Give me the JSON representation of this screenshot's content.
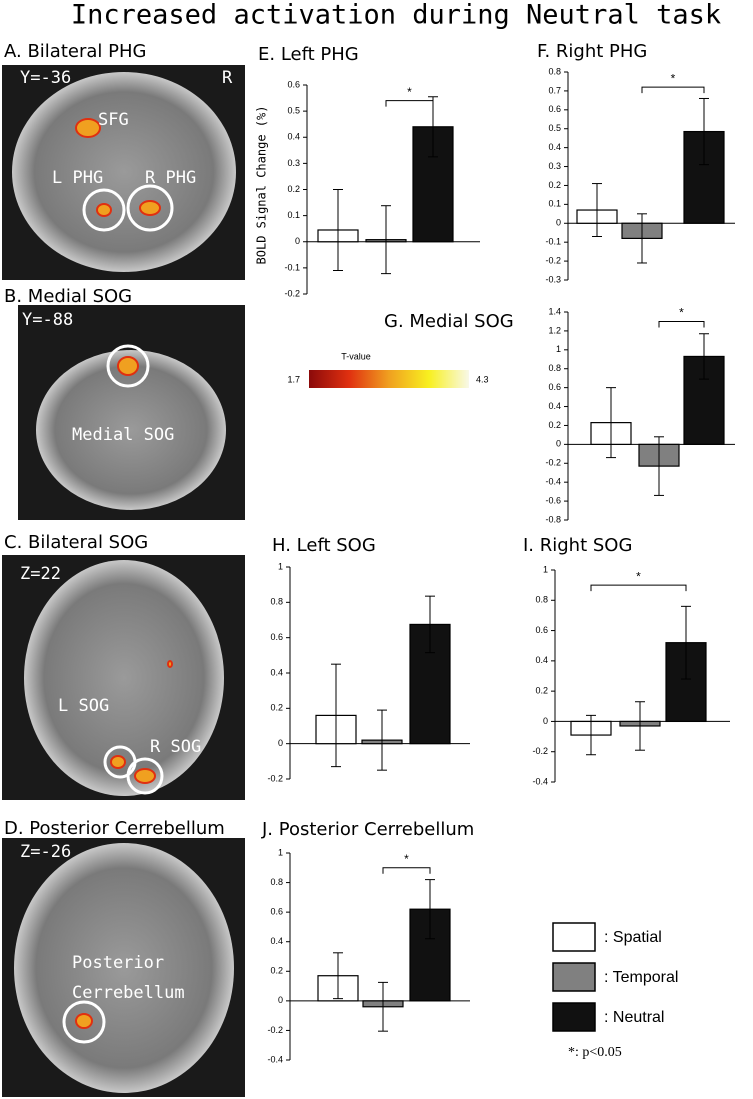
{
  "figure_title": "Increased activation during Neutral task",
  "brain_panels": [
    {
      "title": "A. Bilateral PHG",
      "labels": [
        "Y=-36",
        "R",
        "SFG",
        "L PHG",
        "R PHG"
      ]
    },
    {
      "title": "B. Medial SOG",
      "labels": [
        "Y=-88",
        "Medial SOG"
      ]
    },
    {
      "title": "C. Bilateral SOG",
      "labels": [
        "Z=22",
        "L SOG",
        "R SOG"
      ]
    },
    {
      "title": "D. Posterior Cerrebellum",
      "labels": [
        "Z=-26",
        "Posterior",
        "Cerrebellum"
      ]
    }
  ],
  "colorbar": {
    "title": "T-value",
    "min": 1.7,
    "max": 4.3,
    "colors": [
      "#8b0a0a",
      "#e03010",
      "#f0a020",
      "#f8f020",
      "#f8f8e8"
    ]
  },
  "legend": {
    "items": [
      {
        "label": ": Spatial",
        "color": "#ffffff"
      },
      {
        "label": ": Temporal",
        "color": "#808080"
      },
      {
        "label": ": Neutral",
        "color": "#111111"
      }
    ],
    "note": "*: p<0.05"
  },
  "chart_data": [
    {
      "type": "bar",
      "title": "E. Left PHG",
      "ylabel": "BOLD Signal Change (%)",
      "categories": [
        null,
        null,
        null
      ],
      "values": [
        0.045,
        0.008,
        0.44
      ],
      "errors": [
        0.155,
        0.13,
        0.115
      ],
      "colors": [
        "#ffffff",
        "#808080",
        "#111111"
      ],
      "ylim": [
        -0.2,
        0.6
      ],
      "yticks": [
        -0.2,
        -0.1,
        0,
        0.1,
        0.2,
        0.3,
        0.4,
        0.5,
        0.6
      ],
      "annotations": [
        {
          "text": "*",
          "from": 1,
          "to": 2,
          "y": 0.54
        }
      ]
    },
    {
      "type": "bar",
      "title": "F. Right PHG",
      "categories": [
        null,
        null,
        null
      ],
      "values": [
        0.07,
        -0.08,
        0.485
      ],
      "errors": [
        0.14,
        0.13,
        0.175
      ],
      "colors": [
        "#ffffff",
        "#808080",
        "#111111"
      ],
      "ylim": [
        -0.3,
        0.8
      ],
      "yticks": [
        -0.3,
        -0.2,
        -0.1,
        0,
        0.1,
        0.2,
        0.3,
        0.4,
        0.5,
        0.6,
        0.7,
        0.8
      ],
      "annotations": [
        {
          "text": "*",
          "from": 1,
          "to": 2,
          "y": 0.72
        }
      ]
    },
    {
      "type": "bar",
      "title": "G. Medial SOG",
      "categories": [
        null,
        null,
        null
      ],
      "values": [
        0.23,
        -0.23,
        0.93
      ],
      "errors": [
        0.37,
        0.31,
        0.24
      ],
      "colors": [
        "#ffffff",
        "#808080",
        "#111111"
      ],
      "ylim": [
        -0.8,
        1.4
      ],
      "yticks": [
        -0.8,
        -0.6,
        -0.4,
        -0.2,
        0,
        0.2,
        0.4,
        0.6,
        0.8,
        1,
        1.2,
        1.4
      ],
      "annotations": [
        {
          "text": "*",
          "from": 1,
          "to": 2,
          "y": 1.3
        }
      ]
    },
    {
      "type": "bar",
      "title": "H. Left SOG",
      "categories": [
        null,
        null,
        null
      ],
      "values": [
        0.16,
        0.02,
        0.675
      ],
      "errors": [
        0.29,
        0.17,
        0.16
      ],
      "colors": [
        "#ffffff",
        "#808080",
        "#111111"
      ],
      "ylim": [
        -0.2,
        1
      ],
      "yticks": [
        -0.2,
        0,
        0.2,
        0.4,
        0.6,
        0.8,
        1
      ],
      "annotations": []
    },
    {
      "type": "bar",
      "title": "I. Right SOG",
      "categories": [
        null,
        null,
        null
      ],
      "values": [
        -0.09,
        -0.03,
        0.52
      ],
      "errors": [
        0.13,
        0.16,
        0.24
      ],
      "colors": [
        "#ffffff",
        "#808080",
        "#111111"
      ],
      "ylim": [
        -0.4,
        1
      ],
      "yticks": [
        -0.4,
        -0.2,
        0,
        0.2,
        0.4,
        0.6,
        0.8,
        1
      ],
      "annotations": [
        {
          "text": "*",
          "from": 0,
          "to": 2,
          "y": 0.9
        }
      ]
    },
    {
      "type": "bar",
      "title": "J. Posterior Cerrebellum",
      "categories": [
        null,
        null,
        null
      ],
      "values": [
        0.17,
        -0.04,
        0.62
      ],
      "errors": [
        0.155,
        0.165,
        0.2
      ],
      "colors": [
        "#ffffff",
        "#808080",
        "#111111"
      ],
      "ylim": [
        -0.4,
        1
      ],
      "yticks": [
        -0.4,
        -0.2,
        0,
        0.2,
        0.4,
        0.6,
        0.8,
        1
      ],
      "annotations": [
        {
          "text": "*",
          "from": 1,
          "to": 2,
          "y": 0.9
        }
      ]
    }
  ]
}
